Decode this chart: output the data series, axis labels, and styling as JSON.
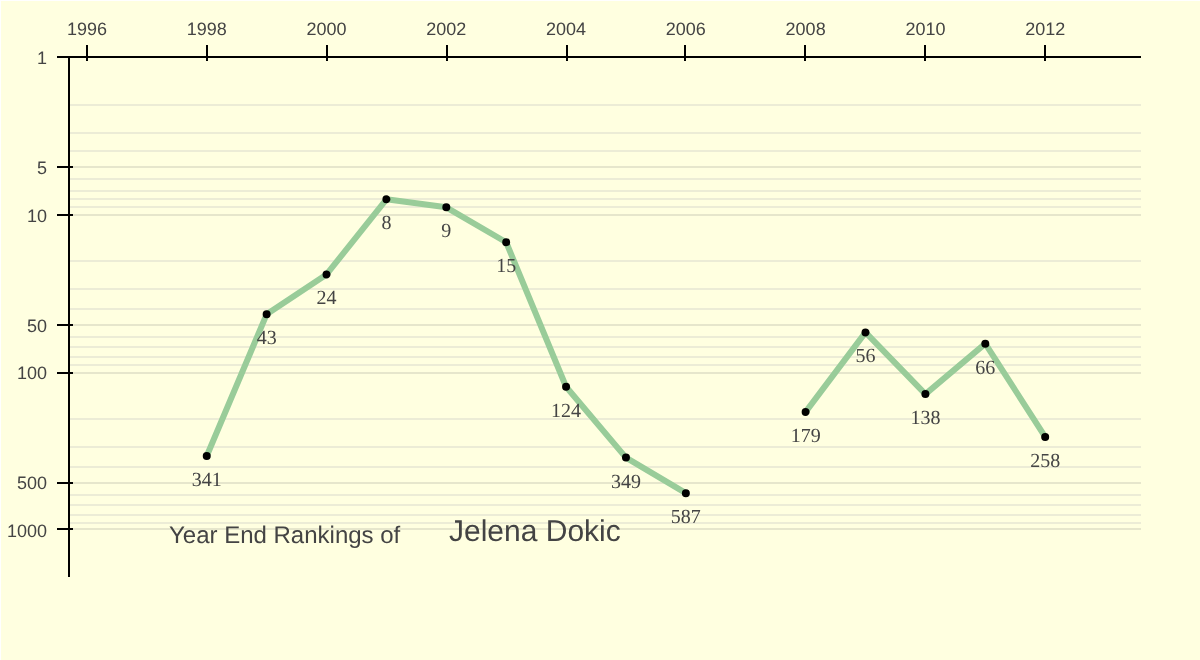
{
  "chart_data": {
    "type": "line",
    "title": "Year End Rankings of",
    "subtitle": "Jelena Dokic",
    "x": [
      1998,
      1999,
      2000,
      2001,
      2002,
      2003,
      2004,
      2005,
      2006,
      2007,
      2008,
      2009,
      2010,
      2011,
      2012
    ],
    "series": [
      {
        "color": "#99cc99",
        "values": [
          341,
          43,
          24,
          8,
          9,
          15,
          124,
          349,
          587,
          null,
          179,
          56,
          138,
          66,
          258
        ]
      }
    ],
    "xlim": [
      1995.7,
      2013.6
    ],
    "xticks": [
      1996,
      1998,
      2000,
      2002,
      2004,
      2006,
      2008,
      2010,
      2012
    ],
    "ylim": [
      2000,
      1
    ],
    "yticks": [
      1,
      5,
      10,
      50,
      100,
      500,
      1000
    ],
    "log": true,
    "grid": "y",
    "marker": "circle",
    "line_style": "solid",
    "data_labels": true
  }
}
